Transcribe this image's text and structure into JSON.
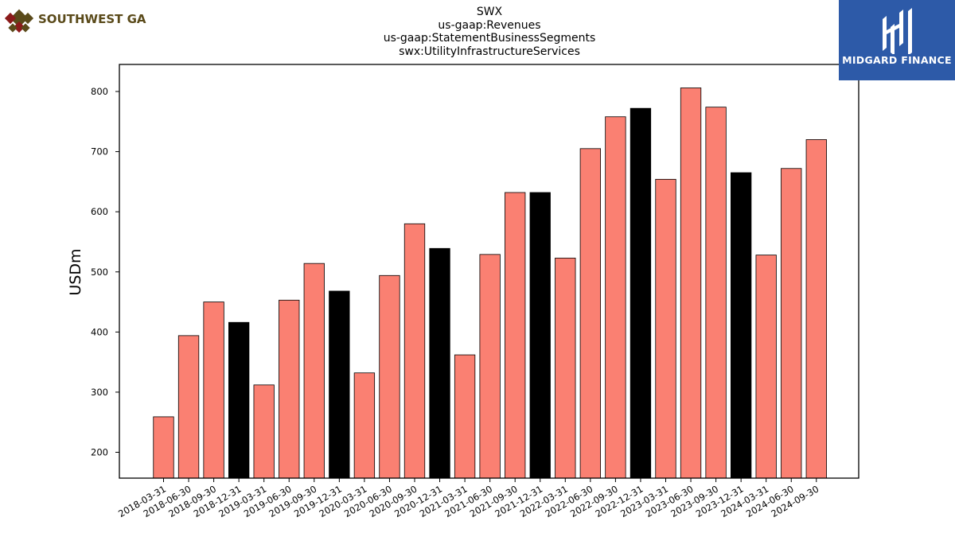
{
  "header": {
    "title_lines": [
      "SWX",
      "us-gaap:Revenues",
      "us-gaap:StatementBusinessSegments",
      "swx:UtilityInfrastructureServices"
    ]
  },
  "logos": {
    "left": {
      "text": "SOUTHWEST GAS",
      "color": "#5a4a1a",
      "icon": "diamond-lattice-icon"
    },
    "right": {
      "text": "MIDGARD FINANCE",
      "background": "#2d5aa8",
      "icon": "midgard-mark-icon"
    }
  },
  "chart_data": {
    "type": "bar",
    "ylabel": "USDm",
    "ylim": [
      157,
      845
    ],
    "yticks": [
      200,
      300,
      400,
      500,
      600,
      700,
      800
    ],
    "grid": false,
    "colors": {
      "default": "#fa8072",
      "highlight": "#000000",
      "edge": "#000000"
    },
    "categories": [
      "2018-03-31",
      "2018-06-30",
      "2018-09-30",
      "2018-12-31",
      "2019-03-31",
      "2019-06-30",
      "2019-09-30",
      "2019-12-31",
      "2020-03-31",
      "2020-06-30",
      "2020-09-30",
      "2020-12-31",
      "2021-03-31",
      "2021-06-30",
      "2021-09-30",
      "2021-12-31",
      "2022-03-31",
      "2022-06-30",
      "2022-09-30",
      "2022-12-31",
      "2023-03-31",
      "2023-06-30",
      "2023-09-30",
      "2023-12-31",
      "2024-03-31",
      "2024-06-30",
      "2024-09-30"
    ],
    "values": [
      259,
      394,
      450,
      416,
      312,
      453,
      514,
      468,
      332,
      494,
      580,
      539,
      362,
      529,
      632,
      632,
      523,
      705,
      758,
      772,
      654,
      806,
      774,
      665,
      528,
      672,
      720
    ],
    "highlight": [
      false,
      false,
      false,
      true,
      false,
      false,
      false,
      true,
      false,
      false,
      false,
      true,
      false,
      false,
      false,
      true,
      false,
      false,
      false,
      true,
      false,
      false,
      false,
      true,
      false,
      false,
      false
    ]
  }
}
